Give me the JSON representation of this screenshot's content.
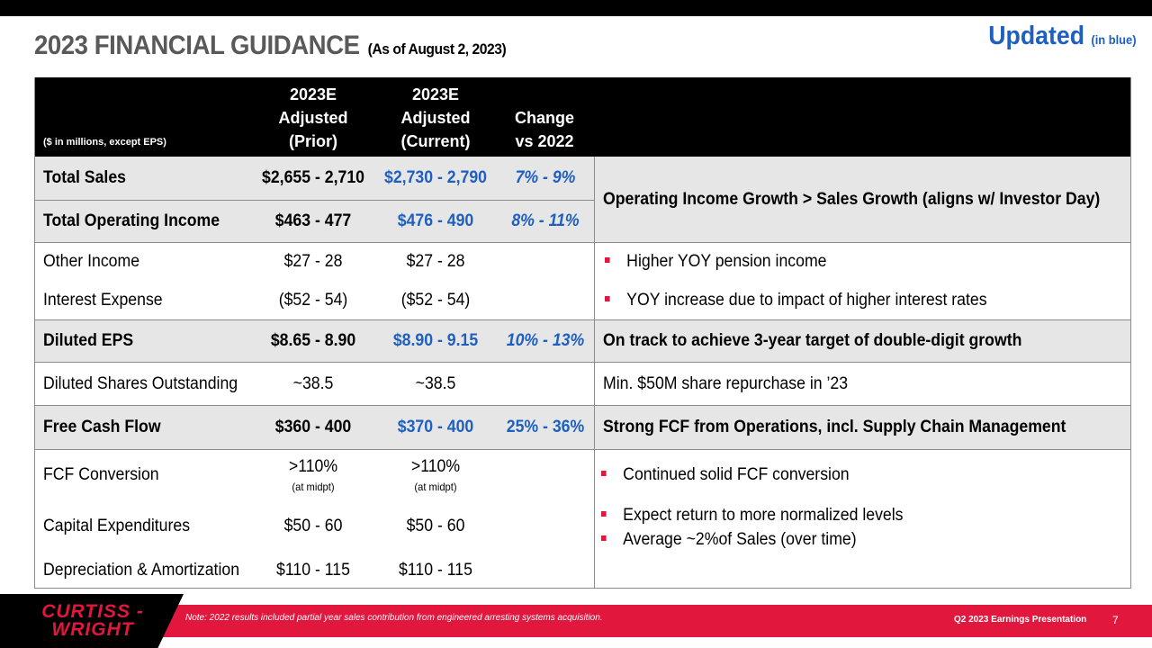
{
  "title": "2023 FINANCIAL GUIDANCE",
  "title_sub": "(As of August 2, 2023)",
  "updated": "Updated",
  "updated_sub": "(in blue)",
  "table": {
    "note": "($ in millions, except EPS)",
    "headers": {
      "prior": [
        "2023E",
        "Adjusted",
        "(Prior)"
      ],
      "current": [
        "2023E",
        "Adjusted",
        "(Current)"
      ],
      "change": [
        "Change",
        "vs 2022"
      ]
    },
    "rows": {
      "total_sales": {
        "label": "Total Sales",
        "prior": "$2,655 - 2,710",
        "current": "$2,730 - 2,790",
        "change": "7% - 9%"
      },
      "total_op_income": {
        "label": "Total Operating Income",
        "prior": "$463 - 477",
        "current": "$476 - 490",
        "change": "8% - 11%"
      },
      "sales_comment": "Operating Income Growth > Sales Growth (aligns w/ Investor Day)",
      "other_income": {
        "label": "Other Income",
        "prior": "$27 - 28",
        "current": "$27 - 28",
        "comment": "Higher YOY pension income"
      },
      "interest_expense": {
        "label": "Interest Expense",
        "prior": "($52 - 54)",
        "current": "($52 - 54)",
        "comment": "YOY increase due to impact of higher interest rates"
      },
      "diluted_eps": {
        "label": "Diluted EPS",
        "prior": "$8.65 - 8.90",
        "current": "$8.90 - 9.15",
        "change": "10% - 13%",
        "comment": "On track to achieve 3-year target of double-digit growth"
      },
      "diluted_shares": {
        "label": "Diluted Shares Outstanding",
        "prior": "~38.5",
        "current": "~38.5",
        "comment": "Min. $50M share repurchase in ’23"
      },
      "fcf": {
        "label": "Free Cash Flow",
        "prior": "$360 - 400",
        "current": "$370 - 400",
        "change": "25% - 36%",
        "comment": "Strong FCF from Operations, incl. Supply Chain Management"
      },
      "fcf_conversion": {
        "label": "FCF Conversion",
        "prior": ">110%",
        "prior_sub": "(at midpt)",
        "current": ">110%",
        "current_sub": "(at midpt)",
        "comment": "Continued solid FCF conversion"
      },
      "capex": {
        "label": "Capital Expenditures",
        "prior": "$50 - 60",
        "current": "$50 - 60",
        "comment_1": "Expect return to more normalized levels",
        "comment_2": "Average ~2%of Sales (over time)"
      },
      "da": {
        "label": "Depreciation & Amortization",
        "prior": "$110 - 115",
        "current": "$110 - 115"
      }
    }
  },
  "footer": {
    "logo_line1": "CURTISS -",
    "logo_line2": "WRIGHT",
    "note": "Note: 2022 results included partial year sales contribution from engineered  arresting systems acquisition.",
    "presentation": "Q2 2023 Earnings Presentation",
    "page": "7"
  },
  "colors": {
    "accent_red": "#e1173e",
    "updated_blue": "#1f5fbf",
    "header_black": "#000000",
    "row_gray": "#e6e6e6"
  }
}
